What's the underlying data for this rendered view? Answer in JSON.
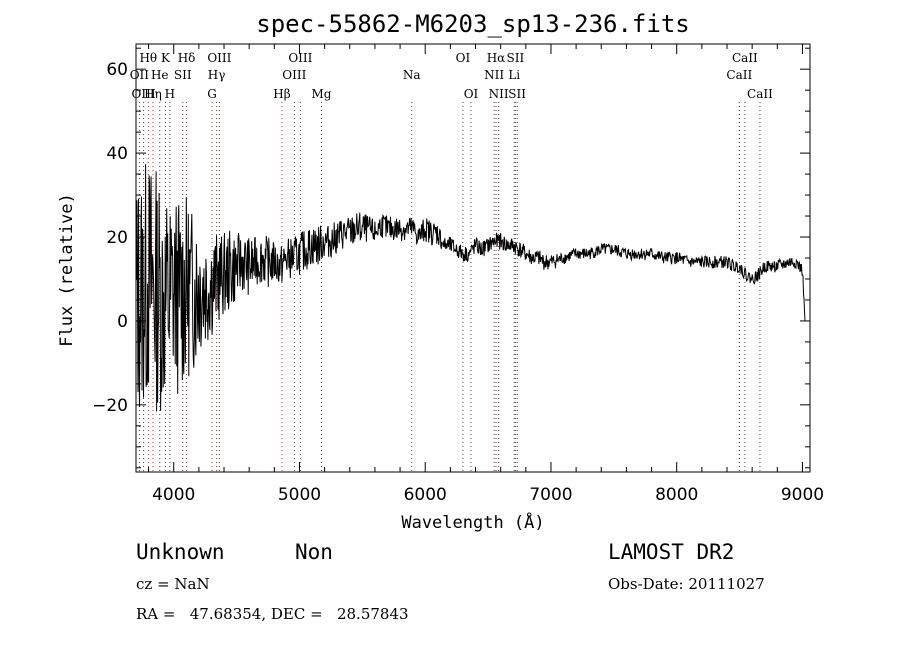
{
  "chart_data": {
    "type": "line",
    "title": "spec-55862-M6203_sp13-236.fits",
    "xlabel": "Wavelength (Å)",
    "ylabel": "Flux (relative)",
    "xlim": [
      3700,
      9060
    ],
    "ylim": [
      -36,
      66
    ],
    "xticks": [
      4000,
      5000,
      6000,
      7000,
      8000,
      9000
    ],
    "yticks": [
      -20,
      0,
      20,
      40,
      60
    ],
    "x_tick_labels": [
      "4000",
      "5000",
      "6000",
      "7000",
      "8000",
      "9000"
    ],
    "y_tick_labels": [
      "−20",
      "0",
      "20",
      "40",
      "60"
    ],
    "grid": false,
    "series": [
      {
        "x": [
          3700,
          3760,
          3800,
          3850,
          3900,
          3950,
          4000,
          4050,
          4100,
          4150,
          4200,
          4250,
          4300,
          4350,
          4400,
          4450,
          4500,
          4550,
          4600,
          4650,
          4700,
          4750,
          4800,
          4850,
          4900,
          4950,
          5000,
          5050,
          5100,
          5150,
          5200,
          5250,
          5300,
          5350,
          5400,
          5450,
          5500,
          5550,
          5600,
          5650,
          5700,
          5750,
          5800,
          5850,
          5900,
          5950,
          6000,
          6050,
          6100,
          6150,
          6200,
          6250,
          6300,
          6350,
          6400,
          6450,
          6500,
          6550,
          6600,
          6650,
          6700,
          6750,
          6800,
          6850,
          6900,
          6950,
          7000,
          7100,
          7200,
          7300,
          7400,
          7500,
          7600,
          7700,
          7800,
          7900,
          8000,
          8100,
          8200,
          8300,
          8400,
          8450,
          8500,
          8550,
          8600,
          8650,
          8700,
          8800,
          8900,
          8950,
          9000,
          9020
        ],
        "y": [
          5,
          8,
          10,
          8,
          6,
          5,
          7,
          6,
          8,
          7,
          9,
          8,
          9,
          10,
          11,
          12,
          13,
          14,
          13,
          14,
          15,
          14,
          14,
          13,
          15,
          15,
          16,
          17,
          18,
          18,
          19,
          19,
          20,
          21,
          21,
          22,
          22,
          22,
          21,
          23,
          22,
          22,
          22,
          22,
          22,
          20,
          22,
          21,
          21,
          18,
          18,
          17,
          16,
          16,
          18,
          17,
          18,
          19,
          19,
          18,
          18,
          17,
          16,
          15,
          15,
          14,
          14,
          15,
          16,
          16,
          17,
          17,
          16,
          16,
          16,
          15,
          15,
          14,
          14,
          14,
          14,
          13,
          13,
          11,
          10,
          11,
          13,
          13,
          14,
          14,
          12,
          0
        ],
        "noise": [
          30,
          30,
          30,
          30,
          28,
          26,
          24,
          24,
          22,
          20,
          18,
          15,
          13,
          11,
          10,
          10,
          8,
          7,
          7,
          6,
          6,
          6,
          5,
          5,
          5,
          5,
          5,
          5,
          5,
          5,
          4,
          4,
          4,
          4,
          4,
          4,
          4,
          3,
          3,
          3,
          3,
          3,
          3,
          3,
          3,
          3,
          3,
          3,
          3,
          2,
          2,
          2,
          2,
          2,
          2,
          2,
          2,
          2,
          2,
          2,
          2,
          2,
          2,
          2,
          2,
          2,
          2,
          1.5,
          1.5,
          1.5,
          1.5,
          1.5,
          1.5,
          1.5,
          1.5,
          1.5,
          1.5,
          1.5,
          1.5,
          1.5,
          1.5,
          1.5,
          1.5,
          1.5,
          1.5,
          1.5,
          1.5,
          1.5,
          1.5,
          1.5,
          1.5,
          0
        ]
      }
    ],
    "lines": [
      {
        "label": "Hθ",
        "x": 3798,
        "row": 0,
        "color": "#cc2222"
      },
      {
        "label": "OII",
        "x": 3727,
        "row": 1,
        "color": "#444444"
      },
      {
        "label": "He",
        "x": 3889,
        "row": 1,
        "color": "#444444"
      },
      {
        "label": "OIII",
        "x": 3760,
        "row": 2,
        "color": "#444444"
      },
      {
        "label": "Hη",
        "x": 3835,
        "row": 2,
        "color": "#cc2222"
      },
      {
        "label": "K",
        "x": 3934,
        "row": 0,
        "color": "#444444"
      },
      {
        "label": "H",
        "x": 3969,
        "row": 2,
        "color": "#444444"
      },
      {
        "label": "Hδ",
        "x": 4102,
        "row": 0,
        "color": "#cc2222"
      },
      {
        "label": "SII",
        "x": 4072,
        "row": 1,
        "color": "#444444"
      },
      {
        "label": "OIII",
        "x": 4363,
        "row": 0,
        "color": "#444444"
      },
      {
        "label": "Hγ",
        "x": 4341,
        "row": 1,
        "color": "#cc2222"
      },
      {
        "label": "G",
        "x": 4305,
        "row": 2,
        "color": "#444444"
      },
      {
        "label": "Hβ",
        "x": 4861,
        "row": 2,
        "color": "#cc2222"
      },
      {
        "label": "OIII",
        "x": 5007,
        "row": 0,
        "color": "#444444"
      },
      {
        "label": "OIII",
        "x": 4959,
        "row": 1,
        "color": "#444444"
      },
      {
        "label": "Mg",
        "x": 5175,
        "row": 2,
        "color": "#444444"
      },
      {
        "label": "Na",
        "x": 5893,
        "row": 1,
        "color": "#444444"
      },
      {
        "label": "OI",
        "x": 6300,
        "row": 0,
        "color": "#444444"
      },
      {
        "label": "OI",
        "x": 6364,
        "row": 2,
        "color": "#444444"
      },
      {
        "label": "Hα",
        "x": 6563,
        "row": 0,
        "color": "#cc2222"
      },
      {
        "label": "NII",
        "x": 6548,
        "row": 1,
        "color": "#444444"
      },
      {
        "label": "NII",
        "x": 6584,
        "row": 2,
        "color": "#444444"
      },
      {
        "label": "SII",
        "x": 6717,
        "row": 0,
        "color": "#444444"
      },
      {
        "label": "Li",
        "x": 6708,
        "row": 1,
        "color": "#444444"
      },
      {
        "label": "SII",
        "x": 6731,
        "row": 2,
        "color": "#444444"
      },
      {
        "label": "CaII",
        "x": 8542,
        "row": 0,
        "color": "#444444"
      },
      {
        "label": "CaII",
        "x": 8498,
        "row": 1,
        "color": "#444444"
      },
      {
        "label": "CaII",
        "x": 8662,
        "row": 2,
        "color": "#444444"
      }
    ]
  },
  "info": {
    "class": "Unknown",
    "subclass": "Non",
    "survey": "LAMOST DR2",
    "cz": "cz = NaN",
    "obs_date": "Obs-Date: 20111027",
    "coords": "RA =   47.68354, DEC =   28.57843"
  }
}
